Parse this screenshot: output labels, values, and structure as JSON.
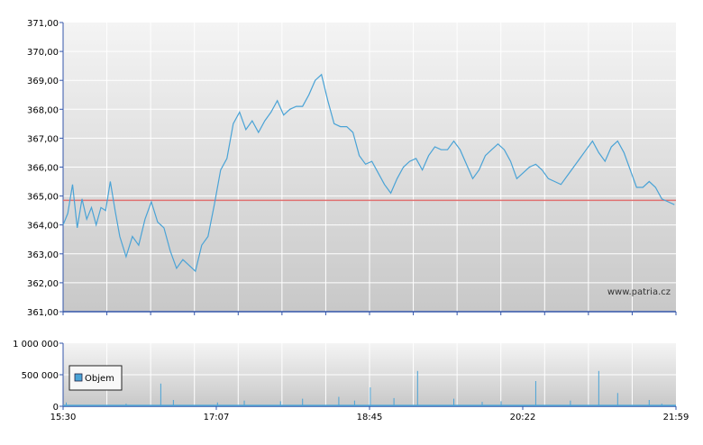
{
  "watermark": "www.patria.cz",
  "legend": {
    "label": "Objem"
  },
  "colors": {
    "line": "#4aa3d6",
    "reference": "#e07070",
    "volume": "#4aa3d6",
    "axis": "#3355aa",
    "grid": "#ffffff",
    "bg_top": "#f4f4f4",
    "bg_bottom": "#c8c8c8"
  },
  "chart_data": [
    {
      "type": "line",
      "name": "price",
      "ylim": [
        361,
        371
      ],
      "y_ticks": [
        "361,00",
        "362,00",
        "363,00",
        "364,00",
        "365,00",
        "366,00",
        "367,00",
        "368,00",
        "369,00",
        "370,00",
        "371,00"
      ],
      "reference_value": 364.85,
      "x_ticks": [
        "15:30",
        "17:07",
        "18:45",
        "20:22",
        "21:59"
      ],
      "x_range_minutes": [
        0,
        389
      ],
      "grid": true,
      "series": [
        {
          "x": [
            0,
            3,
            6,
            9,
            12,
            15,
            18,
            21,
            24,
            27,
            30,
            33,
            36,
            40,
            44,
            48,
            52,
            56,
            60,
            64,
            68,
            72,
            76,
            80,
            84,
            88,
            92,
            96,
            100,
            104,
            108,
            112,
            116,
            120,
            124,
            128,
            132,
            136,
            140,
            144,
            148,
            152,
            156,
            160,
            164,
            168,
            172,
            176,
            180,
            184,
            188,
            192,
            196,
            200,
            204,
            208,
            212,
            216,
            220,
            224,
            228,
            232,
            236,
            240,
            244,
            248,
            252,
            256,
            260,
            264,
            268,
            272,
            276,
            280,
            284,
            288,
            292,
            296,
            300,
            304,
            308,
            312,
            316,
            320,
            324,
            328,
            332,
            336,
            340,
            344,
            348,
            352,
            356,
            360,
            364,
            368,
            372,
            376,
            380,
            384,
            388
          ],
          "y": [
            364.0,
            364.4,
            365.4,
            363.9,
            364.9,
            364.2,
            364.6,
            364.0,
            364.6,
            364.5,
            365.5,
            364.5,
            363.6,
            362.9,
            363.6,
            363.3,
            364.2,
            364.8,
            364.1,
            363.9,
            363.1,
            362.5,
            362.8,
            362.6,
            362.4,
            363.3,
            363.6,
            364.7,
            365.9,
            366.3,
            367.5,
            367.9,
            367.3,
            367.6,
            367.2,
            367.6,
            367.9,
            368.3,
            367.8,
            368.0,
            368.1,
            368.1,
            368.5,
            369.0,
            369.2,
            368.3,
            367.5,
            367.4,
            367.4,
            367.2,
            366.4,
            366.1,
            366.2,
            365.8,
            365.4,
            365.1,
            365.6,
            366.0,
            366.2,
            366.3,
            365.9,
            366.4,
            366.7,
            366.6,
            366.6,
            366.9,
            366.6,
            366.1,
            365.6,
            365.9,
            366.4,
            366.6,
            366.8,
            366.6,
            366.2,
            365.6,
            365.8,
            366.0,
            366.1,
            365.9,
            365.6,
            365.5,
            365.4,
            365.7,
            366.0,
            366.3,
            366.6,
            366.9,
            366.5,
            366.2,
            366.7,
            366.9,
            366.5,
            365.9,
            365.3,
            365.3,
            365.5,
            365.3,
            364.9,
            364.8,
            364.7
          ]
        }
      ]
    },
    {
      "type": "bar",
      "name": "volume",
      "ylim": [
        0,
        1000000
      ],
      "y_ticks": [
        "0",
        "500 000",
        "1 000 000"
      ],
      "series": [
        {
          "name": "Objem",
          "x": [
            2,
            40,
            62,
            70,
            98,
            115,
            138,
            152,
            175,
            185,
            195,
            210,
            225,
            248,
            266,
            278,
            300,
            322,
            340,
            352,
            372,
            380
          ],
          "values": [
            60000,
            40000,
            360000,
            100000,
            60000,
            90000,
            80000,
            120000,
            150000,
            90000,
            300000,
            130000,
            560000,
            120000,
            70000,
            80000,
            400000,
            90000,
            560000,
            210000,
            100000,
            40000
          ],
          "base": 25000
        }
      ]
    }
  ]
}
